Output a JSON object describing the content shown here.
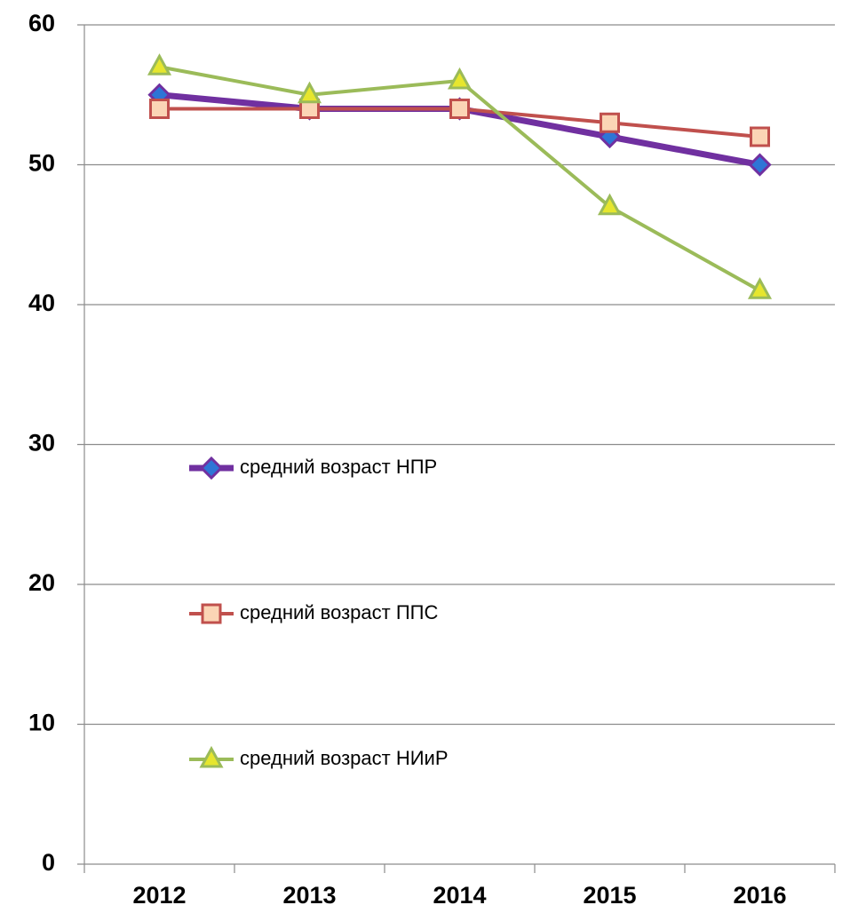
{
  "chart_data": {
    "type": "line",
    "categories": [
      "2012",
      "2013",
      "2014",
      "2015",
      "2016"
    ],
    "series": [
      {
        "name": "средний возраст  НПР",
        "color": "#7030a0",
        "marker": "diamond",
        "marker_fill": "#2e75d6",
        "values": [
          55,
          54,
          54,
          52,
          50
        ]
      },
      {
        "name": "средний возраст  ППС",
        "color": "#c0504d",
        "marker": "square",
        "marker_fill": "#fbd5b5",
        "values": [
          54,
          54,
          54,
          53,
          52
        ]
      },
      {
        "name": "средний возраст  НИиР",
        "color": "#9bbb59",
        "marker": "triangle",
        "marker_fill": "#e6e62e",
        "values": [
          57,
          55,
          56,
          47,
          41
        ]
      }
    ],
    "ylim": [
      0,
      60
    ],
    "yticks": [
      0,
      10,
      20,
      30,
      40,
      50,
      60
    ],
    "grid": true
  }
}
